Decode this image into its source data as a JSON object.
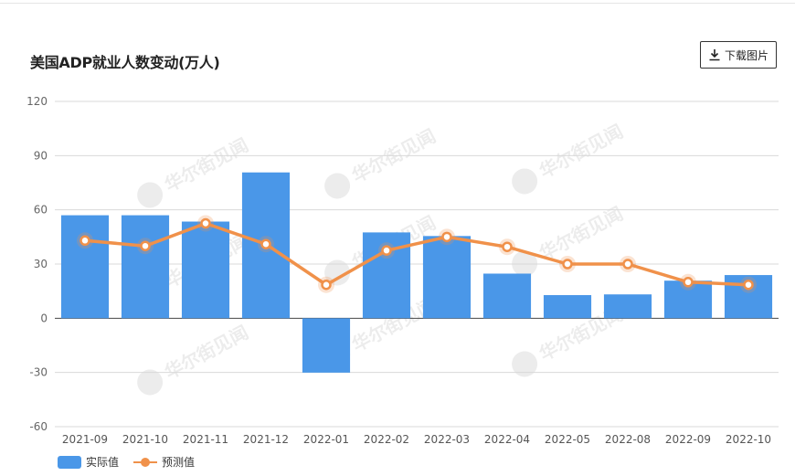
{
  "header": {
    "title": "美国ADP就业人数变动(万人)",
    "download_label": "下载图片"
  },
  "watermark": "华尔街见闻",
  "chart_data": {
    "type": "bar",
    "title": "美国ADP就业人数变动(万人)",
    "categories": [
      "2021-09",
      "2021-10",
      "2021-11",
      "2021-12",
      "2022-01",
      "2022-02",
      "2022-03",
      "2022-04",
      "2022-05",
      "2022-08",
      "2022-09",
      "2022-10"
    ],
    "series": [
      {
        "name": "实际值",
        "type": "bar",
        "color": "#4a97e8",
        "values": [
          57,
          57,
          53.5,
          80.7,
          -30.1,
          47.5,
          45.5,
          24.7,
          12.8,
          13.2,
          20.8,
          23.9
        ]
      },
      {
        "name": "预测值",
        "type": "line",
        "color": "#f0914a",
        "values": [
          43,
          40,
          52.5,
          41,
          18.5,
          37.5,
          45,
          39.5,
          30,
          30,
          20,
          18.5
        ]
      }
    ],
    "ylim": [
      -60,
      120
    ],
    "yticks": [
      -60,
      -30,
      0,
      30,
      60,
      90,
      120
    ],
    "grid": true,
    "legend": "bottom-left"
  }
}
